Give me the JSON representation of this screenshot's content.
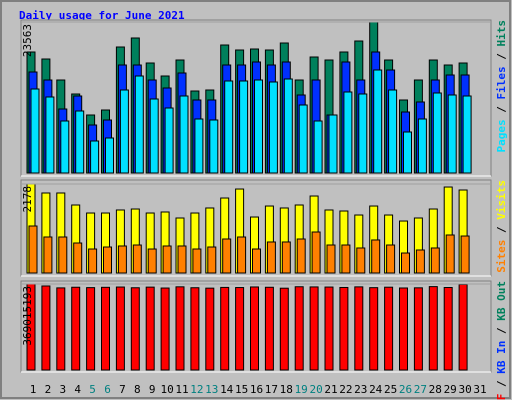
{
  "title": "Daily usage for June 2021",
  "legend_separator": " / ",
  "categories": [
    "1",
    "2",
    "3",
    "4",
    "5",
    "6",
    "7",
    "8",
    "9",
    "10",
    "11",
    "12",
    "13",
    "14",
    "15",
    "16",
    "17",
    "18",
    "19",
    "20",
    "21",
    "22",
    "23",
    "24",
    "25",
    "26",
    "27",
    "28",
    "29",
    "30",
    "31"
  ],
  "category_colors": [
    "#000000",
    "#000000",
    "#000000",
    "#000000",
    "#008080",
    "#008080",
    "#000000",
    "#000000",
    "#000000",
    "#000000",
    "#000000",
    "#008080",
    "#008080",
    "#000000",
    "#000000",
    "#000000",
    "#000000",
    "#000000",
    "#008080",
    "#008080",
    "#000000",
    "#000000",
    "#000000",
    "#000000",
    "#000000",
    "#008080",
    "#008080",
    "#000000",
    "#000000",
    "#000000",
    "#000000"
  ],
  "chart_data": [
    {
      "type": "bar",
      "ylim": [
        0,
        23563
      ],
      "yticks": [
        23563
      ],
      "series": [
        {
          "name": "Pages",
          "color": "#00e0ff",
          "values": [
            13108,
            11860,
            8115,
            9675,
            4994,
            5462,
            12952,
            15137,
            11548,
            10143,
            12016,
            8427,
            8271,
            14357,
            14357,
            14513,
            14201,
            14669,
            10611,
            8115,
            9051,
            12640,
            12328,
            16073,
            12952,
            6398,
            8427,
            12484,
            12172,
            12016,
            null
          ]
        },
        {
          "name": "Files",
          "color": "#0030ff",
          "values": [
            15761,
            14513,
            9987,
            12016,
            7490,
            8271,
            16853,
            16853,
            14513,
            13264,
            15605,
            11392,
            11392,
            16853,
            16853,
            17322,
            16853,
            17322,
            12172,
            14513,
            9051,
            17322,
            14513,
            18882,
            16073,
            9519,
            11080,
            14513,
            15293,
            15293,
            null
          ]
        },
        {
          "name": "Hits",
          "color": "#00805c",
          "values": [
            18882,
            17789,
            14512,
            12328,
            9051,
            9831,
            19662,
            21067,
            17165,
            15137,
            17633,
            12796,
            12952,
            19974,
            19194,
            19350,
            19194,
            20286,
            14512,
            18101,
            17633,
            18882,
            20598,
            23563,
            17633,
            11392,
            14512,
            17633,
            16853,
            17165,
            null
          ]
        }
      ]
    },
    {
      "type": "bar",
      "ylim": [
        0,
        2178
      ],
      "yticks": [
        2178
      ],
      "series": [
        {
          "name": "Sites",
          "color": "#ff8000",
          "values": [
            1150,
            881,
            881,
            734,
            587,
            636,
            661,
            685,
            587,
            661,
            661,
            587,
            636,
            832,
            881,
            587,
            759,
            759,
            832,
            1003,
            685,
            685,
            612,
            808,
            685,
            489,
            563,
            612,
            930,
            905,
            null
          ]
        },
        {
          "name": "Visits",
          "color": "#ffff00",
          "values": [
            2178,
            1958,
            1958,
            1664,
            1468,
            1468,
            1542,
            1566,
            1468,
            1493,
            1346,
            1468,
            1591,
            1835,
            2055,
            1370,
            1639,
            1591,
            1664,
            1884,
            1542,
            1517,
            1419,
            1639,
            1419,
            1272,
            1346,
            1566,
            2104,
            2031,
            null
          ]
        }
      ]
    },
    {
      "type": "bar",
      "ylim": [
        0,
        369015193
      ],
      "yticks": [
        369015193
      ],
      "series": [
        {
          "name": "KB F",
          "color": "#ff0000",
          "values": [
            369015193,
            360500000,
            352300000,
            355100000,
            353400000,
            354800000,
            356000000,
            352900000,
            355600000,
            351700000,
            356900000,
            353000000,
            351200000,
            354400000,
            353800000,
            356300000,
            355000000,
            351000000,
            357200000,
            356500000,
            355900000,
            354100000,
            356700000,
            353300000,
            355300000,
            351900000,
            352600000,
            357800000,
            354000000,
            367100000,
            null
          ]
        }
      ],
      "legend_only": [
        {
          "name": "KB In",
          "color": "#0030ff"
        },
        {
          "name": "KB Out",
          "color": "#00805c"
        }
      ]
    }
  ]
}
